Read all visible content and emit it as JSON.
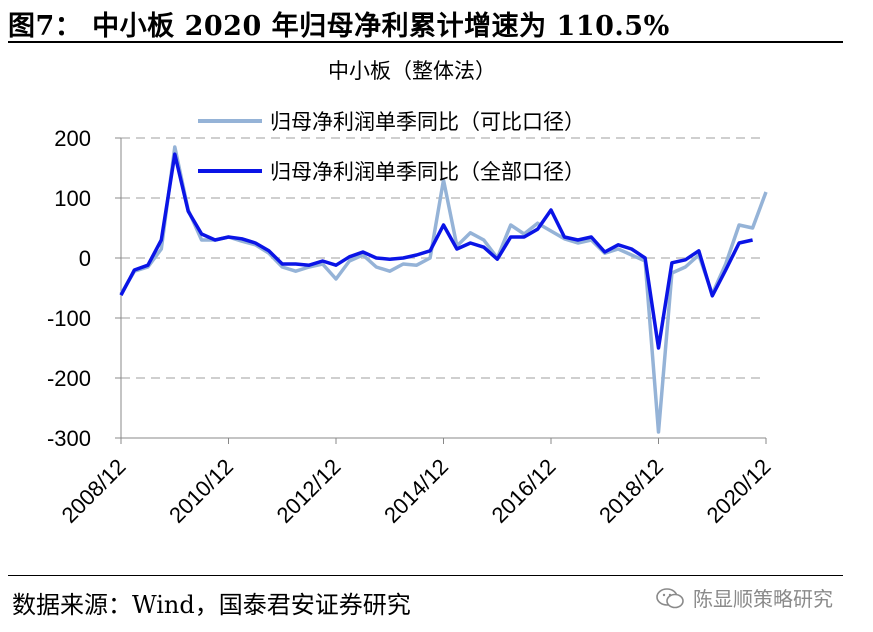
{
  "figure": {
    "title": "图7： 中小板 2020 年归母净利累计增速为 110.5%",
    "source": "数据来源：Wind，国泰君安证券研究",
    "watermark": "陈显顺策略研究"
  },
  "chart_data": {
    "type": "line",
    "title": "中小板（整体法）",
    "xlabel": "",
    "ylabel": "",
    "ylim": [
      -300,
      200
    ],
    "yticks": [
      200,
      100,
      0,
      -100,
      -200,
      -300
    ],
    "x_tick_labels": [
      "2008/12",
      "2010/12",
      "2012/12",
      "2014/12",
      "2016/12",
      "2018/12",
      "2020/12"
    ],
    "grid": true,
    "legend": "top-center",
    "series": [
      {
        "name": "归母净利润单季同比（可比口径）",
        "color": "#95b3d7",
        "x": [
          "2008/12",
          "2009/03",
          "2009/06",
          "2009/09",
          "2009/12",
          "2010/03",
          "2010/06",
          "2010/09",
          "2010/12",
          "2011/03",
          "2011/06",
          "2011/09",
          "2011/12",
          "2012/03",
          "2012/06",
          "2012/09",
          "2012/12",
          "2013/03",
          "2013/06",
          "2013/09",
          "2013/12",
          "2014/03",
          "2014/06",
          "2014/09",
          "2014/12",
          "2015/03",
          "2015/06",
          "2015/09",
          "2015/12",
          "2016/03",
          "2016/06",
          "2016/09",
          "2016/12",
          "2017/03",
          "2017/06",
          "2017/09",
          "2017/12",
          "2018/03",
          "2018/06",
          "2018/09",
          "2018/12",
          "2019/03",
          "2019/06",
          "2019/09",
          "2019/12",
          "2020/03",
          "2020/06",
          "2020/09",
          "2020/12"
        ],
        "values": [
          -60,
          -22,
          -15,
          15,
          185,
          80,
          30,
          30,
          35,
          28,
          22,
          8,
          -15,
          -22,
          -15,
          -10,
          -35,
          -5,
          5,
          -15,
          -22,
          -10,
          -12,
          0,
          130,
          20,
          42,
          30,
          0,
          55,
          40,
          58,
          45,
          32,
          25,
          30,
          8,
          15,
          5,
          -5,
          -290,
          -25,
          -15,
          5,
          -60,
          -10,
          55,
          50,
          110
        ]
      },
      {
        "name": "归母净利润单季同比（全部口径）",
        "color": "#0a14e6",
        "x": [
          "2008/12",
          "2009/03",
          "2009/06",
          "2009/09",
          "2009/12",
          "2010/03",
          "2010/06",
          "2010/09",
          "2010/12",
          "2011/03",
          "2011/06",
          "2011/09",
          "2011/12",
          "2012/03",
          "2012/06",
          "2012/09",
          "2012/12",
          "2013/03",
          "2013/06",
          "2013/09",
          "2013/12",
          "2014/03",
          "2014/06",
          "2014/09",
          "2014/12",
          "2015/03",
          "2015/06",
          "2015/09",
          "2015/12",
          "2016/03",
          "2016/06",
          "2016/09",
          "2016/12",
          "2017/03",
          "2017/06",
          "2017/09",
          "2017/12",
          "2018/03",
          "2018/06",
          "2018/09",
          "2018/12",
          "2019/03",
          "2019/06",
          "2019/09",
          "2019/12",
          "2020/03",
          "2020/06",
          "2020/09"
        ],
        "values": [
          -62,
          -20,
          -12,
          30,
          173,
          78,
          40,
          30,
          35,
          32,
          25,
          12,
          -10,
          -10,
          -12,
          -5,
          -12,
          2,
          10,
          0,
          -2,
          0,
          5,
          12,
          55,
          15,
          25,
          18,
          -2,
          35,
          35,
          48,
          80,
          35,
          30,
          35,
          10,
          22,
          15,
          0,
          -150,
          -8,
          -3,
          12,
          -63,
          -20,
          25,
          30
        ]
      }
    ]
  }
}
